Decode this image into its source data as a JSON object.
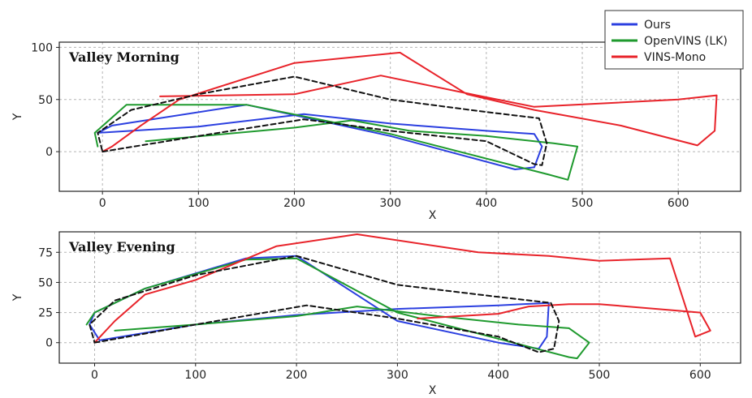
{
  "legend": [
    {
      "name": "Ours",
      "color": "#2b3fe0"
    },
    {
      "name": "OpenVINS (LK)",
      "color": "#1f9a2e"
    },
    {
      "name": "VINS-Mono",
      "color": "#e8232a"
    }
  ],
  "ground_truth_style": {
    "color": "#111111",
    "dash": true
  },
  "chart_data": [
    {
      "type": "line",
      "title": "Valley Morning",
      "xlabel": "X",
      "ylabel": "Y",
      "xlim": [
        -45,
        665
      ],
      "ylim": [
        -38,
        105
      ],
      "xticks": [
        0,
        100,
        200,
        300,
        400,
        500,
        600
      ],
      "yticks": [
        0,
        50,
        100
      ],
      "grid": true,
      "series": [
        {
          "name": "Ours",
          "color": "#2b3fe0",
          "points": [
            [
              -5,
              18
            ],
            [
              100,
              24
            ],
            [
              210,
              36
            ],
            [
              300,
              27
            ],
            [
              400,
              20
            ],
            [
              450,
              17
            ],
            [
              458,
              5
            ],
            [
              450,
              -15
            ],
            [
              430,
              -17
            ],
            [
              300,
              15
            ],
            [
              150,
              45
            ],
            [
              10,
              25
            ],
            [
              -5,
              18
            ]
          ]
        },
        {
          "name": "OpenVINS (LK)",
          "color": "#1f9a2e",
          "points": [
            [
              45,
              10
            ],
            [
              200,
              23
            ],
            [
              260,
              30
            ],
            [
              320,
              20
            ],
            [
              400,
              15
            ],
            [
              470,
              8
            ],
            [
              495,
              5
            ],
            [
              485,
              -27
            ],
            [
              465,
              -22
            ],
            [
              300,
              17
            ],
            [
              150,
              45
            ],
            [
              25,
              45
            ],
            [
              -8,
              18
            ],
            [
              -5,
              5
            ]
          ]
        },
        {
          "name": "VINS-Mono",
          "color": "#e8232a",
          "points": [
            [
              60,
              53
            ],
            [
              200,
              55
            ],
            [
              290,
              73
            ],
            [
              390,
              54
            ],
            [
              450,
              43
            ],
            [
              600,
              50
            ],
            [
              640,
              54
            ],
            [
              638,
              20
            ],
            [
              620,
              6
            ],
            [
              540,
              25
            ],
            [
              450,
              40
            ],
            [
              380,
              55
            ],
            [
              310,
              95
            ],
            [
              200,
              85
            ],
            [
              80,
              50
            ],
            [
              40,
              25
            ],
            [
              10,
              5
            ],
            [
              0,
              0
            ]
          ]
        },
        {
          "name": "",
          "color": "#111111",
          "dashed": true,
          "points": [
            [
              0,
              0
            ],
            [
              100,
              15
            ],
            [
              210,
              31
            ],
            [
              300,
              20
            ],
            [
              400,
              10
            ],
            [
              450,
              -12
            ],
            [
              458,
              -13
            ],
            [
              463,
              8
            ],
            [
              455,
              32
            ],
            [
              400,
              38
            ],
            [
              300,
              50
            ],
            [
              200,
              72
            ],
            [
              100,
              55
            ],
            [
              30,
              40
            ],
            [
              -5,
              18
            ],
            [
              0,
              0
            ]
          ]
        }
      ]
    },
    {
      "type": "line",
      "title": "Valley Evening",
      "xlabel": "X",
      "ylabel": "Y",
      "xlim": [
        -35,
        640
      ],
      "ylim": [
        -17,
        92
      ],
      "xticks": [
        0,
        100,
        200,
        300,
        400,
        500,
        600
      ],
      "yticks": [
        0,
        25,
        50,
        75
      ],
      "grid": true,
      "series": [
        {
          "name": "Ours",
          "color": "#2b3fe0",
          "points": [
            [
              5,
              2
            ],
            [
              100,
              15
            ],
            [
              200,
              23
            ],
            [
              300,
              28
            ],
            [
              400,
              31
            ],
            [
              450,
              33
            ],
            [
              448,
              5
            ],
            [
              440,
              -5
            ],
            [
              400,
              0
            ],
            [
              300,
              18
            ],
            [
              200,
              72
            ],
            [
              150,
              70
            ],
            [
              50,
              45
            ],
            [
              0,
              25
            ],
            [
              -5,
              15
            ],
            [
              5,
              2
            ]
          ]
        },
        {
          "name": "OpenVINS (LK)",
          "color": "#1f9a2e",
          "points": [
            [
              20,
              10
            ],
            [
              100,
              15
            ],
            [
              200,
              22
            ],
            [
              260,
              30
            ],
            [
              340,
              22
            ],
            [
              420,
              15
            ],
            [
              470,
              12
            ],
            [
              490,
              0
            ],
            [
              478,
              -13
            ],
            [
              470,
              -12
            ],
            [
              300,
              25
            ],
            [
              200,
              70
            ],
            [
              150,
              69
            ],
            [
              50,
              45
            ],
            [
              0,
              25
            ],
            [
              -8,
              15
            ]
          ]
        },
        {
          "name": "VINS-Mono",
          "color": "#e8232a",
          "points": [
            [
              320,
              20
            ],
            [
              400,
              24
            ],
            [
              430,
              30
            ],
            [
              470,
              32
            ],
            [
              500,
              32
            ],
            [
              600,
              25
            ],
            [
              610,
              10
            ],
            [
              595,
              5
            ],
            [
              570,
              70
            ],
            [
              500,
              68
            ],
            [
              450,
              72
            ],
            [
              380,
              75
            ],
            [
              260,
              90
            ],
            [
              180,
              80
            ],
            [
              100,
              52
            ],
            [
              50,
              40
            ],
            [
              20,
              18
            ],
            [
              0,
              0
            ]
          ]
        },
        {
          "name": "",
          "color": "#111111",
          "dashed": true,
          "points": [
            [
              0,
              0
            ],
            [
              100,
              15
            ],
            [
              210,
              31
            ],
            [
              300,
              20
            ],
            [
              400,
              5
            ],
            [
              440,
              -8
            ],
            [
              455,
              -5
            ],
            [
              460,
              18
            ],
            [
              452,
              33
            ],
            [
              400,
              38
            ],
            [
              300,
              48
            ],
            [
              200,
              72
            ],
            [
              100,
              56
            ],
            [
              20,
              35
            ],
            [
              -5,
              15
            ],
            [
              0,
              0
            ]
          ]
        }
      ]
    }
  ]
}
